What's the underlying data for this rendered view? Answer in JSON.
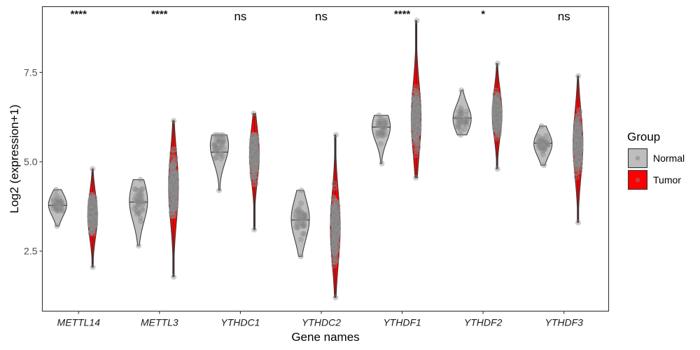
{
  "chart_data": {
    "type": "violin",
    "title": "",
    "xlabel": "Gene names",
    "ylabel": "Log2 (expression+1)",
    "ylim": [
      0.82,
      9.34
    ],
    "yticks": [
      2.5,
      5.0,
      7.5
    ],
    "ytick_labels": [
      "2.5",
      "5.0",
      "7.5"
    ],
    "grid": false,
    "categories": [
      "METTL14",
      "METTL3",
      "YTHDC1",
      "YTHDC2",
      "YTHDF1",
      "YTHDF2",
      "YTHDF3"
    ],
    "significance": [
      "****",
      "****",
      "ns",
      "ns",
      "****",
      "*",
      "ns"
    ],
    "legend": {
      "title": "Group",
      "position": "right",
      "entries": [
        {
          "label": "Normal",
          "color": "#bebebe"
        },
        {
          "label": "Tumor",
          "color": "#ff0000"
        }
      ]
    },
    "series": [
      {
        "name": "Normal",
        "fill": "#bebebe",
        "violins": [
          {
            "min": 3.2,
            "max": 4.22,
            "median": 3.78,
            "mode": 3.8
          },
          {
            "min": 2.65,
            "max": 4.5,
            "median": 3.87,
            "mode": 3.9
          },
          {
            "min": 4.2,
            "max": 5.75,
            "median": 5.27,
            "mode": 5.45
          },
          {
            "min": 2.35,
            "max": 4.2,
            "median": 3.37,
            "mode": 3.4
          },
          {
            "min": 4.95,
            "max": 6.3,
            "median": 5.97,
            "mode": 5.98
          },
          {
            "min": 5.75,
            "max": 7.0,
            "median": 6.22,
            "mode": 6.2
          },
          {
            "min": 4.9,
            "max": 6.0,
            "median": 5.52,
            "mode": 5.5
          }
        ]
      },
      {
        "name": "Tumor",
        "fill": "#ff0000",
        "violins": [
          {
            "min": 2.05,
            "max": 4.8,
            "median": 3.5,
            "mode": 3.5
          },
          {
            "min": 1.78,
            "max": 6.15,
            "median": 4.3,
            "mode": 4.3
          },
          {
            "min": 3.1,
            "max": 6.35,
            "median": 5.2,
            "mode": 5.2
          },
          {
            "min": 1.2,
            "max": 5.75,
            "median": 3.15,
            "mode": 3.15
          },
          {
            "min": 4.55,
            "max": 8.95,
            "median": 6.15,
            "mode": 6.2
          },
          {
            "min": 4.8,
            "max": 7.75,
            "median": 6.35,
            "mode": 6.35
          },
          {
            "min": 3.3,
            "max": 7.4,
            "median": 5.5,
            "mode": 5.5
          }
        ]
      }
    ],
    "points_color": "#808080"
  }
}
